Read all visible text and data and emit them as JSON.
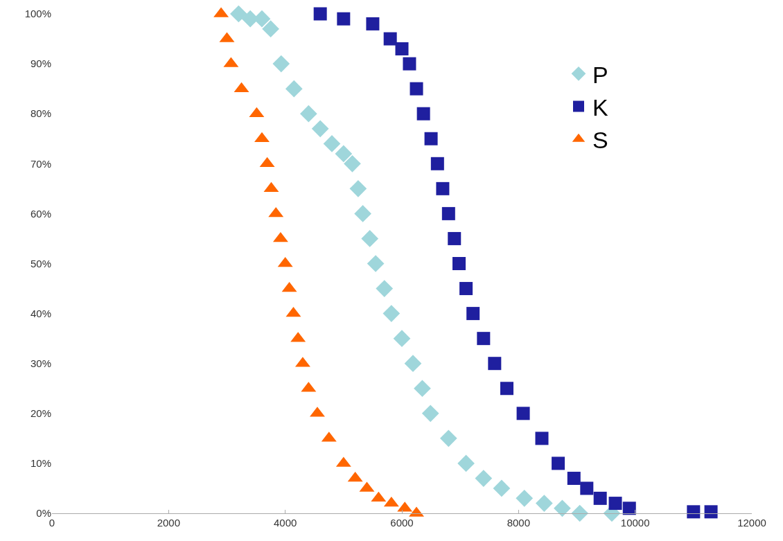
{
  "chart_data": {
    "type": "scatter",
    "xlim": [
      0,
      12000
    ],
    "xticks": [
      0,
      2000,
      4000,
      6000,
      8000,
      10000,
      12000
    ],
    "ylim": [
      0,
      100
    ],
    "yticks": [
      {
        "value": 0,
        "label": "0%"
      },
      {
        "value": 10,
        "label": "10%"
      },
      {
        "value": 20,
        "label": "20%"
      },
      {
        "value": 30,
        "label": "30%"
      },
      {
        "value": 40,
        "label": "40%"
      },
      {
        "value": 50,
        "label": "50%"
      },
      {
        "value": 60,
        "label": "60%"
      },
      {
        "value": 70,
        "label": "70%"
      },
      {
        "value": 80,
        "label": "80%"
      },
      {
        "value": 90,
        "label": "90%"
      },
      {
        "value": 100,
        "label": "100%"
      }
    ],
    "legend": "top right",
    "series": [
      {
        "name": "P",
        "color": "#9fd6db",
        "marker": "diamond",
        "x": [
          3200,
          3400,
          3600,
          3750,
          3930,
          4150,
          4400,
          4600,
          4800,
          5000,
          5150,
          5250,
          5330,
          5450,
          5550,
          5700,
          5820,
          6000,
          6190,
          6350,
          6490,
          6800,
          7100,
          7400,
          7710,
          8100,
          8440,
          8750,
          9050,
          9600
        ],
        "values": [
          100,
          99,
          99,
          97,
          90,
          85,
          80,
          77,
          74,
          72,
          70,
          65,
          60,
          55,
          50,
          45,
          40,
          35,
          30,
          25,
          20,
          15,
          10,
          7,
          5,
          3,
          2,
          1,
          0,
          0
        ]
      },
      {
        "name": "K",
        "color": "#1f1f9f",
        "marker": "square",
        "x": [
          4600,
          5000,
          5500,
          5800,
          6000,
          6130,
          6250,
          6370,
          6500,
          6610,
          6700,
          6800,
          6900,
          6980,
          7100,
          7220,
          7400,
          7590,
          7800,
          8080,
          8400,
          8680,
          8950,
          9170,
          9400,
          9660,
          9900,
          11000,
          11300
        ],
        "values": [
          100,
          99,
          98,
          95,
          93,
          90,
          85,
          80,
          75,
          70,
          65,
          60,
          55,
          50,
          45,
          40,
          35,
          30,
          25,
          20,
          15,
          10,
          7,
          5,
          3,
          2,
          1,
          0.3,
          0.3
        ]
      },
      {
        "name": "S",
        "color": "#ff6600",
        "marker": "triangle",
        "x": [
          2900,
          3000,
          3070,
          3250,
          3510,
          3600,
          3690,
          3760,
          3840,
          3920,
          4000,
          4070,
          4140,
          4220,
          4300,
          4400,
          4550,
          4750,
          5000,
          5200,
          5400,
          5600,
          5820,
          6050,
          6250
        ],
        "values": [
          100,
          95,
          90,
          85,
          80,
          75,
          70,
          65,
          60,
          55,
          50,
          45,
          40,
          35,
          30,
          25,
          20,
          15,
          10,
          7,
          5,
          3,
          2,
          1,
          0
        ]
      }
    ]
  }
}
